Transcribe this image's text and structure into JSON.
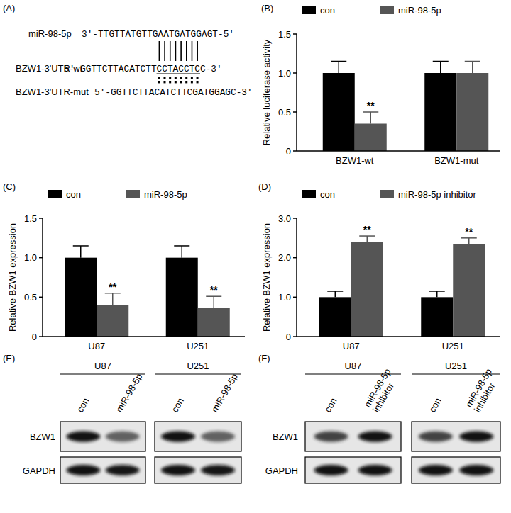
{
  "panel_labels": [
    "(A)",
    "(B)",
    "(C)",
    "(D)",
    "(E)",
    "(F)"
  ],
  "sequence_panel": {
    "mirna_label": "miR-98-5p",
    "mirna_seq": "3'-TTGTTATGTTGAATGATGGAGT-5'",
    "wt_label": "BZW1-3'UTR-wt",
    "wt_seq": "5'-GGTTCTTACATCTTCCTACCTCC-3'",
    "underlined": "CCTACCTC",
    "mut_label": "BZW1-3'UTR-mut",
    "mut_seq": "5'-GGTTCTTACATCTTCGATGGAGC-3'"
  },
  "chart_data": [
    {
      "type": "bar",
      "y_label": "Relative luciferase activity",
      "categories": [
        "BZW1-wt",
        "BZW1-mut"
      ],
      "series": [
        {
          "name": "con",
          "color": "#000000",
          "values": [
            1.0,
            1.0
          ],
          "errors": [
            0.15,
            0.15
          ],
          "significance": [
            null,
            null
          ]
        },
        {
          "name": "miR-98-5p",
          "color": "#555555",
          "values": [
            0.35,
            1.0
          ],
          "errors": [
            0.15,
            0.15
          ],
          "significance": [
            "**",
            null
          ]
        }
      ],
      "ylim": [
        0,
        1.5
      ],
      "yticks": [
        0,
        0.5,
        {
          "value": 1,
          "label": "1.0"
        },
        1.5
      ],
      "legend": "top",
      "grid": false
    },
    {
      "type": "bar",
      "y_label": "Relative BZW1 expression",
      "categories": [
        "U87",
        "U251"
      ],
      "series": [
        {
          "name": "con",
          "color": "#000000",
          "values": [
            1.0,
            1.0
          ],
          "errors": [
            0.15,
            0.15
          ],
          "significance": [
            null,
            null
          ]
        },
        {
          "name": "miR-98-5p",
          "color": "#555555",
          "values": [
            0.4,
            0.36
          ],
          "errors": [
            0.15,
            0.15
          ],
          "significance": [
            "**",
            "**"
          ]
        }
      ],
      "ylim": [
        0,
        1.5
      ],
      "yticks": [
        0,
        0.5,
        {
          "value": 1,
          "label": "1.0"
        },
        1.5
      ],
      "legend": "top",
      "grid": false
    },
    {
      "type": "bar",
      "y_label": "Relative BZW1 expression",
      "categories": [
        "U87",
        "U251"
      ],
      "series": [
        {
          "name": "con",
          "color": "#000000",
          "values": [
            1.0,
            1.0
          ],
          "errors": [
            0.15,
            0.15
          ],
          "significance": [
            null,
            null
          ]
        },
        {
          "name": "miR-98-5p inhibitor",
          "color": "#555555",
          "values": [
            2.4,
            2.35
          ],
          "errors": [
            0.15,
            0.15
          ],
          "significance": [
            "**",
            "**"
          ]
        }
      ],
      "ylim": [
        0,
        3
      ],
      "yticks": [
        0,
        {
          "value": 1,
          "label": "1.0"
        },
        {
          "value": 2,
          "label": "2.0"
        },
        {
          "value": 3,
          "label": "3.0"
        }
      ],
      "legend": "top",
      "grid": false
    }
  ],
  "blot_panels": [
    {
      "groups": [
        "U87",
        "U251"
      ],
      "lanes": [
        "con",
        "miR-98-5p"
      ],
      "rows": [
        "BZW1",
        "GAPDH"
      ]
    },
    {
      "groups": [
        "U87",
        "U251"
      ],
      "lanes": [
        "con",
        "miR-98-5p inhibitor"
      ],
      "rows": [
        "BZW1",
        "GAPDH"
      ]
    }
  ]
}
